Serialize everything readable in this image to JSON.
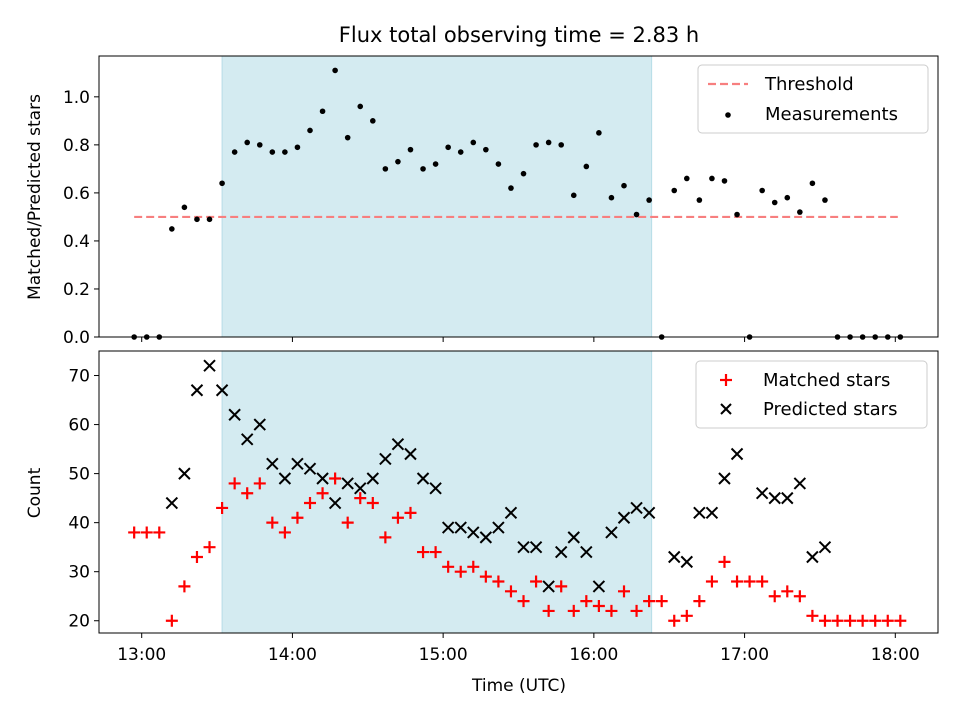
{
  "chart_data": [
    {
      "type": "scatter",
      "title": "Flux total observing time = 2.83 h",
      "xlabel": "",
      "ylabel": "Matched/Predicted stars",
      "ylim": [
        0,
        1.17
      ],
      "yticks": [
        0.0,
        0.2,
        0.4,
        0.6,
        0.8,
        1.0
      ],
      "ytick_labels": [
        "0.0",
        "0.2",
        "0.4",
        "0.6",
        "0.8",
        "1.0"
      ],
      "xticks": [
        "13:00",
        "14:00",
        "15:00",
        "16:00",
        "17:00",
        "18:00"
      ],
      "xlim": [
        "12:43",
        "18:17"
      ],
      "shaded_span": [
        "13:32",
        "16:23"
      ],
      "shade_color": "#d4ebf1",
      "legend_position": "top-right",
      "threshold": {
        "name": "Threshold",
        "value": 0.5,
        "x_range": [
          "12:57",
          "18:01"
        ],
        "color": "#f77f7f"
      },
      "series": [
        {
          "name": "Measurements",
          "color": "#000000",
          "points": [
            [
              "12:57",
              0.0
            ],
            [
              "13:02",
              0.0
            ],
            [
              "13:07",
              0.0
            ],
            [
              "13:12",
              0.45
            ],
            [
              "13:17",
              0.54
            ],
            [
              "13:22",
              0.49
            ],
            [
              "13:27",
              0.49
            ],
            [
              "13:32",
              0.64
            ],
            [
              "13:37",
              0.77
            ],
            [
              "13:42",
              0.81
            ],
            [
              "13:47",
              0.8
            ],
            [
              "13:52",
              0.77
            ],
            [
              "13:57",
              0.77
            ],
            [
              "14:02",
              0.79
            ],
            [
              "14:07",
              0.86
            ],
            [
              "14:12",
              0.94
            ],
            [
              "14:17",
              1.11
            ],
            [
              "14:22",
              0.83
            ],
            [
              "14:27",
              0.96
            ],
            [
              "14:32",
              0.9
            ],
            [
              "14:37",
              0.7
            ],
            [
              "14:42",
              0.73
            ],
            [
              "14:47",
              0.78
            ],
            [
              "14:52",
              0.7
            ],
            [
              "14:57",
              0.72
            ],
            [
              "15:02",
              0.79
            ],
            [
              "15:07",
              0.77
            ],
            [
              "15:12",
              0.81
            ],
            [
              "15:17",
              0.78
            ],
            [
              "15:22",
              0.72
            ],
            [
              "15:27",
              0.62
            ],
            [
              "15:32",
              0.68
            ],
            [
              "15:37",
              0.8
            ],
            [
              "15:42",
              0.81
            ],
            [
              "15:47",
              0.8
            ],
            [
              "15:52",
              0.59
            ],
            [
              "15:57",
              0.71
            ],
            [
              "16:02",
              0.85
            ],
            [
              "16:07",
              0.58
            ],
            [
              "16:12",
              0.63
            ],
            [
              "16:17",
              0.51
            ],
            [
              "16:22",
              0.57
            ],
            [
              "16:27",
              0.0
            ],
            [
              "16:32",
              0.61
            ],
            [
              "16:37",
              0.66
            ],
            [
              "16:42",
              0.57
            ],
            [
              "16:47",
              0.66
            ],
            [
              "16:52",
              0.65
            ],
            [
              "16:57",
              0.51
            ],
            [
              "17:02",
              0.0
            ],
            [
              "17:07",
              0.61
            ],
            [
              "17:12",
              0.56
            ],
            [
              "17:17",
              0.58
            ],
            [
              "17:22",
              0.52
            ],
            [
              "17:27",
              0.64
            ],
            [
              "17:32",
              0.57
            ],
            [
              "17:37",
              0.0
            ],
            [
              "17:42",
              0.0
            ],
            [
              "17:47",
              0.0
            ],
            [
              "17:52",
              0.0
            ],
            [
              "17:57",
              0.0
            ],
            [
              "18:02",
              0.0
            ]
          ]
        }
      ]
    },
    {
      "type": "scatter",
      "title": "",
      "xlabel": "Time (UTC)",
      "ylabel": "Count",
      "ylim": [
        17.5,
        75
      ],
      "yticks": [
        20,
        30,
        40,
        50,
        60,
        70
      ],
      "ytick_labels": [
        "20",
        "30",
        "40",
        "50",
        "60",
        "70"
      ],
      "xticks": [
        "13:00",
        "14:00",
        "15:00",
        "16:00",
        "17:00",
        "18:00"
      ],
      "xtick_labels": [
        "13:00",
        "14:00",
        "15:00",
        "16:00",
        "17:00",
        "18:00"
      ],
      "xlim": [
        "12:43",
        "18:17"
      ],
      "shaded_span": [
        "13:32",
        "16:23"
      ],
      "shade_color": "#d4ebf1",
      "legend_position": "top-right",
      "series": [
        {
          "name": "Matched stars",
          "marker": "plus",
          "color": "#ff0000",
          "points": [
            [
              "12:57",
              38
            ],
            [
              "13:02",
              38
            ],
            [
              "13:07",
              38
            ],
            [
              "13:12",
              20
            ],
            [
              "13:17",
              27
            ],
            [
              "13:22",
              33
            ],
            [
              "13:27",
              35
            ],
            [
              "13:32",
              43
            ],
            [
              "13:37",
              48
            ],
            [
              "13:42",
              46
            ],
            [
              "13:47",
              48
            ],
            [
              "13:52",
              40
            ],
            [
              "13:57",
              38
            ],
            [
              "14:02",
              41
            ],
            [
              "14:07",
              44
            ],
            [
              "14:12",
              46
            ],
            [
              "14:17",
              49
            ],
            [
              "14:22",
              40
            ],
            [
              "14:27",
              45
            ],
            [
              "14:32",
              44
            ],
            [
              "14:37",
              37
            ],
            [
              "14:42",
              41
            ],
            [
              "14:47",
              42
            ],
            [
              "14:52",
              34
            ],
            [
              "14:57",
              34
            ],
            [
              "15:02",
              31
            ],
            [
              "15:07",
              30
            ],
            [
              "15:12",
              31
            ],
            [
              "15:17",
              29
            ],
            [
              "15:22",
              28
            ],
            [
              "15:27",
              26
            ],
            [
              "15:32",
              24
            ],
            [
              "15:37",
              28
            ],
            [
              "15:42",
              22
            ],
            [
              "15:47",
              27
            ],
            [
              "15:52",
              22
            ],
            [
              "15:57",
              24
            ],
            [
              "16:02",
              23
            ],
            [
              "16:07",
              22
            ],
            [
              "16:12",
              26
            ],
            [
              "16:17",
              22
            ],
            [
              "16:22",
              24
            ],
            [
              "16:27",
              24
            ],
            [
              "16:32",
              20
            ],
            [
              "16:37",
              21
            ],
            [
              "16:42",
              24
            ],
            [
              "16:47",
              28
            ],
            [
              "16:52",
              32
            ],
            [
              "16:57",
              28
            ],
            [
              "17:02",
              28
            ],
            [
              "17:07",
              28
            ],
            [
              "17:12",
              25
            ],
            [
              "17:17",
              26
            ],
            [
              "17:22",
              25
            ],
            [
              "17:27",
              21
            ],
            [
              "17:32",
              20
            ],
            [
              "17:37",
              20
            ],
            [
              "17:42",
              20
            ],
            [
              "17:47",
              20
            ],
            [
              "17:52",
              20
            ],
            [
              "17:57",
              20
            ],
            [
              "18:02",
              20
            ]
          ]
        },
        {
          "name": "Predicted stars",
          "marker": "x",
          "color": "#000000",
          "points": [
            [
              "13:12",
              44
            ],
            [
              "13:17",
              50
            ],
            [
              "13:22",
              67
            ],
            [
              "13:27",
              72
            ],
            [
              "13:32",
              67
            ],
            [
              "13:37",
              62
            ],
            [
              "13:42",
              57
            ],
            [
              "13:47",
              60
            ],
            [
              "13:52",
              52
            ],
            [
              "13:57",
              49
            ],
            [
              "14:02",
              52
            ],
            [
              "14:07",
              51
            ],
            [
              "14:12",
              49
            ],
            [
              "14:17",
              44
            ],
            [
              "14:22",
              48
            ],
            [
              "14:27",
              47
            ],
            [
              "14:32",
              49
            ],
            [
              "14:37",
              53
            ],
            [
              "14:42",
              56
            ],
            [
              "14:47",
              54
            ],
            [
              "14:52",
              49
            ],
            [
              "14:57",
              47
            ],
            [
              "15:02",
              39
            ],
            [
              "15:07",
              39
            ],
            [
              "15:12",
              38
            ],
            [
              "15:17",
              37
            ],
            [
              "15:22",
              39
            ],
            [
              "15:27",
              42
            ],
            [
              "15:32",
              35
            ],
            [
              "15:37",
              35
            ],
            [
              "15:42",
              27
            ],
            [
              "15:47",
              34
            ],
            [
              "15:52",
              37
            ],
            [
              "15:57",
              34
            ],
            [
              "16:02",
              27
            ],
            [
              "16:07",
              38
            ],
            [
              "16:12",
              41
            ],
            [
              "16:17",
              43
            ],
            [
              "16:22",
              42
            ],
            [
              "16:32",
              33
            ],
            [
              "16:37",
              32
            ],
            [
              "16:42",
              42
            ],
            [
              "16:47",
              42
            ],
            [
              "16:52",
              49
            ],
            [
              "16:57",
              54
            ],
            [
              "17:07",
              46
            ],
            [
              "17:12",
              45
            ],
            [
              "17:17",
              45
            ],
            [
              "17:22",
              48
            ],
            [
              "17:27",
              33
            ],
            [
              "17:32",
              35
            ]
          ]
        }
      ]
    }
  ]
}
